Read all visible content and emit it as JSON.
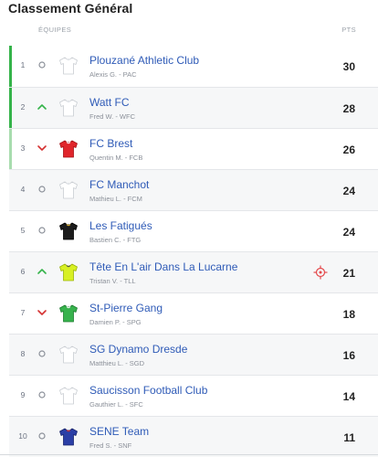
{
  "title": "Classement Général",
  "columns": {
    "teams": "ÉQUIPES",
    "points": "PTS"
  },
  "colors": {
    "green_bar": "#35b34a",
    "light_green_bar": "#a8dcae",
    "up": "#35b34a",
    "down": "#d53030",
    "link": "#2f5bb7"
  },
  "rows": [
    {
      "rank": "1",
      "trend": "same",
      "jersey": "white",
      "team": "Plouzané Athletic Club",
      "manager": "Alexis G. - PAC",
      "points": "30",
      "bar": "green",
      "target": false
    },
    {
      "rank": "2",
      "trend": "up",
      "jersey": "white",
      "team": "Watt FC",
      "manager": "Fred W. - WFC",
      "points": "28",
      "bar": "green",
      "target": false
    },
    {
      "rank": "3",
      "trend": "down",
      "jersey": "red",
      "team": "FC Brest",
      "manager": "Quentin M. - FCB",
      "points": "26",
      "bar": "light-green",
      "target": false
    },
    {
      "rank": "4",
      "trend": "same",
      "jersey": "white",
      "team": "FC Manchot",
      "manager": "Mathieu L. - FCM",
      "points": "24",
      "bar": "none",
      "target": false
    },
    {
      "rank": "5",
      "trend": "same",
      "jersey": "black",
      "team": "Les Fatigués",
      "manager": "Bastien C. - FTG",
      "points": "24",
      "bar": "none",
      "target": false
    },
    {
      "rank": "6",
      "trend": "up",
      "jersey": "yellow",
      "team": "Tête En L'air Dans La Lucarne",
      "manager": "Tristan V. - TLL",
      "points": "21",
      "bar": "none",
      "target": true
    },
    {
      "rank": "7",
      "trend": "down",
      "jersey": "green",
      "team": "St-Pierre Gang",
      "manager": "Damien P. - SPG",
      "points": "18",
      "bar": "none",
      "target": false
    },
    {
      "rank": "8",
      "trend": "same",
      "jersey": "white",
      "team": "SG Dynamo Dresde",
      "manager": "Matthieu L. - SGD",
      "points": "16",
      "bar": "none",
      "target": false
    },
    {
      "rank": "9",
      "trend": "same",
      "jersey": "white",
      "team": "Saucisson Football Club",
      "manager": "Gauthier L. - SFC",
      "points": "14",
      "bar": "none",
      "target": false
    },
    {
      "rank": "10",
      "trend": "same",
      "jersey": "blue-red",
      "team": "SENE Team",
      "manager": "Fred S. - SNF",
      "points": "11",
      "bar": "none",
      "target": false
    }
  ]
}
